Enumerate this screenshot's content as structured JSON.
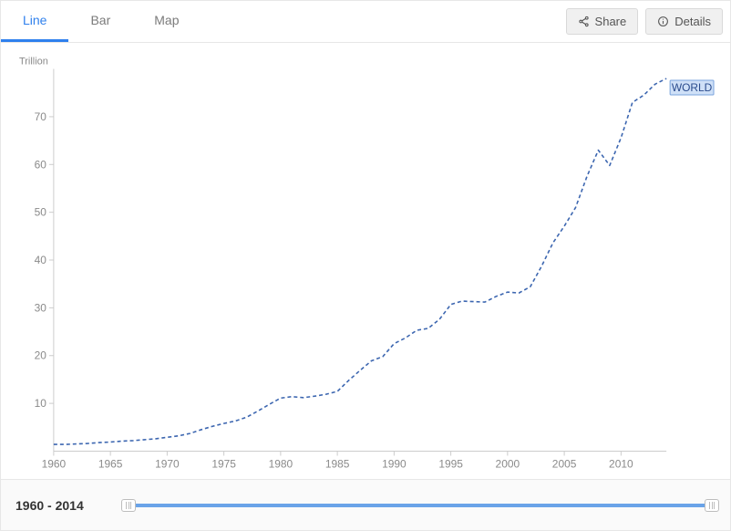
{
  "tabs": {
    "line": "Line",
    "bar": "Bar",
    "map": "Map",
    "active": "line"
  },
  "actions": {
    "share": "Share",
    "details": "Details"
  },
  "chart": {
    "type": "line",
    "y_unit_label": "Trillion",
    "series_label": "WORLD",
    "line_color": "#3c66b0",
    "line_width": 1.6,
    "line_dash": "4 3",
    "background_color": "#ffffff",
    "axis_color": "#cccccc",
    "tick_color": "#8a8a8a",
    "label_box_bg": "#cfe0f7",
    "label_box_border": "#7aa3dd",
    "xlim": [
      1960,
      2014
    ],
    "ylim": [
      0,
      80
    ],
    "xticks": [
      1960,
      1965,
      1970,
      1975,
      1980,
      1985,
      1990,
      1995,
      2000,
      2005,
      2010
    ],
    "yticks": [
      10,
      20,
      30,
      40,
      50,
      60,
      70
    ],
    "years": [
      1960,
      1961,
      1962,
      1963,
      1964,
      1965,
      1966,
      1967,
      1968,
      1969,
      1970,
      1971,
      1972,
      1973,
      1974,
      1975,
      1976,
      1977,
      1978,
      1979,
      1980,
      1981,
      1982,
      1983,
      1984,
      1985,
      1986,
      1987,
      1988,
      1989,
      1990,
      1991,
      1992,
      1993,
      1994,
      1995,
      1996,
      1997,
      1998,
      1999,
      2000,
      2001,
      2002,
      2003,
      2004,
      2005,
      2006,
      2007,
      2008,
      2009,
      2010,
      2011,
      2012,
      2013,
      2014
    ],
    "values": [
      1.4,
      1.4,
      1.5,
      1.6,
      1.8,
      1.9,
      2.1,
      2.2,
      2.4,
      2.6,
      2.9,
      3.2,
      3.7,
      4.5,
      5.2,
      5.8,
      6.3,
      7.1,
      8.4,
      9.8,
      11.1,
      11.4,
      11.2,
      11.5,
      11.9,
      12.5,
      14.8,
      16.9,
      18.9,
      19.8,
      22.5,
      23.7,
      25.3,
      25.7,
      27.6,
      30.7,
      31.4,
      31.3,
      31.2,
      32.4,
      33.3,
      33.1,
      34.4,
      38.7,
      43.6,
      47.1,
      51.0,
      57.5,
      63.0,
      59.8,
      65.6,
      73.0,
      74.5,
      76.8,
      78.0
    ]
  },
  "timebar": {
    "start": "1960",
    "sep": " - ",
    "end": "2014",
    "slider_color": "#6aa3e8"
  }
}
